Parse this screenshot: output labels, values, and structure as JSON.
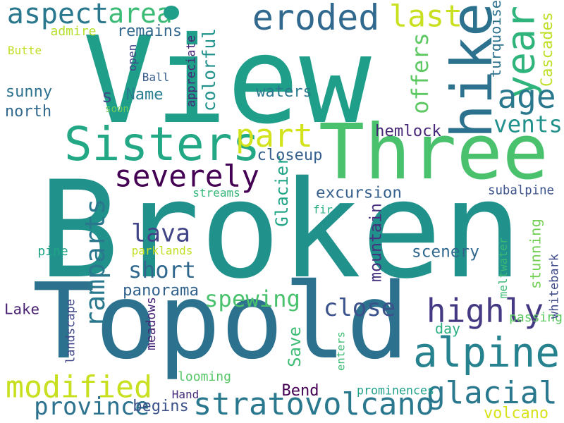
{
  "background": "#ffffff",
  "words": [
    {
      "text": "View",
      "color": "#1f9e89"
    },
    {
      "text": "Broken",
      "color": "#21918c"
    },
    {
      "text": "Topold",
      "color": "#2c728e"
    },
    {
      "text": "Three",
      "color": "#4ac16d"
    },
    {
      "text": "hike",
      "color": "#2c728e"
    },
    {
      "text": "Sisters",
      "color": "#22a884"
    },
    {
      "text": "alpine",
      "color": "#26828e"
    },
    {
      "text": "stratovolcano",
      "color": "#2a788e"
    },
    {
      "text": "eroded",
      "color": "#31688e"
    },
    {
      "text": "aspect",
      "color": "#2a788e"
    },
    {
      "text": "modified",
      "color": "#c8e020"
    },
    {
      "text": "highly",
      "color": "#443983"
    },
    {
      "text": "glacial",
      "color": "#2a788e"
    },
    {
      "text": "severely",
      "color": "#440154"
    },
    {
      "text": "year",
      "color": "#2fb47c"
    },
    {
      "text": "part",
      "color": "#d2e21b"
    },
    {
      "text": "last",
      "color": "#c8e020"
    },
    {
      "text": "age",
      "color": "#2a788e"
    },
    {
      "text": "area",
      "color": "#3bbb75"
    },
    {
      "text": "short",
      "color": "#31688e"
    },
    {
      "text": "province",
      "color": "#2c728e"
    },
    {
      "text": "spewing",
      "color": "#4ac16d"
    },
    {
      "text": "close",
      "color": "#3b528b"
    },
    {
      "text": "ramparts",
      "color": "#2a788e"
    },
    {
      "text": "lava",
      "color": "#414487"
    },
    {
      "text": "offers",
      "color": "#5ec962"
    },
    {
      "text": "vents",
      "color": "#21918c"
    },
    {
      "text": "colorful",
      "color": "#21918c"
    },
    {
      "text": "panorama",
      "color": "#33638d"
    },
    {
      "text": "excursion",
      "color": "#355f8d"
    },
    {
      "text": "scenery",
      "color": "#31688e"
    },
    {
      "text": "mountain",
      "color": "#46327e"
    },
    {
      "text": "hemlock",
      "color": "#482878"
    },
    {
      "text": "stunning",
      "color": "#73d055"
    },
    {
      "text": "Glacier",
      "color": "#20a486"
    },
    {
      "text": "closeup",
      "color": "#355f8d"
    },
    {
      "text": "waters",
      "color": "#2a788e"
    },
    {
      "text": "sunny",
      "color": "#2c728e"
    },
    {
      "text": "north",
      "color": "#31688e"
    },
    {
      "text": "Name",
      "color": "#287d8e"
    },
    {
      "text": "s",
      "color": "#3e4a89"
    },
    {
      "text": "remains",
      "color": "#31688e"
    },
    {
      "text": "admire",
      "color": "#b5de2b"
    },
    {
      "text": "appreciate",
      "color": "#482677"
    },
    {
      "text": "turquoise",
      "color": "#2c728e"
    },
    {
      "text": "Cascades",
      "color": "#bddf26"
    },
    {
      "text": "Lake",
      "color": "#482173"
    },
    {
      "text": "Bend",
      "color": "#440154"
    },
    {
      "text": "begins",
      "color": "#3b528b"
    },
    {
      "text": "volcano",
      "color": "#d8e219"
    },
    {
      "text": "prominences",
      "color": "#1fa188"
    },
    {
      "text": "Save",
      "color": "#3dbc74"
    },
    {
      "text": "day",
      "color": "#29af7f"
    },
    {
      "text": "subalpine",
      "color": "#3b528b"
    },
    {
      "text": "pine",
      "color": "#20a486"
    },
    {
      "text": "parklands",
      "color": "#c2df23"
    },
    {
      "text": "streams",
      "color": "#35b779"
    },
    {
      "text": "fir",
      "color": "#26ad81"
    },
    {
      "text": "landscape",
      "color": "#404688"
    },
    {
      "text": "meadows",
      "color": "#482475"
    },
    {
      "text": "looming",
      "color": "#56c667"
    },
    {
      "text": "Hand",
      "color": "#472d7b"
    },
    {
      "text": "enters",
      "color": "#3dbc74"
    },
    {
      "text": "passing",
      "color": "#5ec962"
    },
    {
      "text": "whitebark",
      "color": "#3e4a89"
    },
    {
      "text": "meltwater",
      "color": "#3bbb75"
    },
    {
      "text": "Butte",
      "color": "#c0df25"
    },
    {
      "text": "Ball",
      "color": "#365c8d"
    },
    {
      "text": "open",
      "color": "#414487"
    },
    {
      "text": "soon",
      "color": "#6ccd5a"
    },
    {
      "text": "dot",
      "color": "#1f9e89"
    }
  ]
}
